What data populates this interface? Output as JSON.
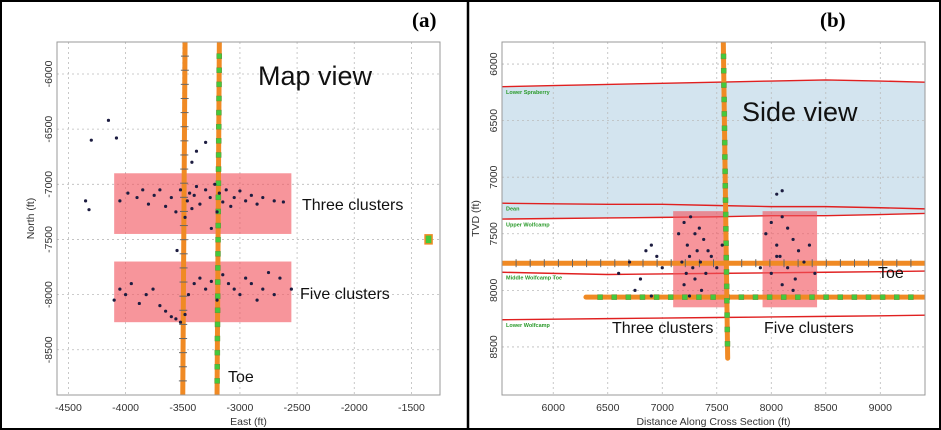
{
  "chart_data": [
    {
      "type": "scatter",
      "panel_label": "(a)",
      "xlabel": "East (ft)",
      "ylabel": "North (ft)",
      "annotations": [
        "Map view",
        "Three clusters",
        "Five clusters",
        "Toe"
      ],
      "xlim": [
        -4600,
        -1250
      ],
      "ylim": [
        -8910,
        -5710
      ],
      "xticks": [
        -4500,
        -4000,
        -3500,
        -3000,
        -2500,
        -2000,
        -1500
      ],
      "yticks": [
        -6000,
        -6500,
        -7000,
        -7500,
        -8000,
        -8500
      ],
      "grid": true,
      "y_inverted": false,
      "color": "#1c1c40",
      "x": [
        -4050,
        -3980,
        -3900,
        -3850,
        -3800,
        -3750,
        -3700,
        -3650,
        -3600,
        -3560,
        -3520,
        -3480,
        -3460,
        -3440,
        -3420,
        -3400,
        -3380,
        -3350,
        -3300,
        -3260,
        -3220,
        -3200,
        -3180,
        -3150,
        -3120,
        -3080,
        -3050,
        -3000,
        -2950,
        -2900,
        -2850,
        -2800,
        -2700,
        -2620,
        -3550,
        -3250,
        -4300,
        -4150,
        -4080,
        -3380,
        -3300,
        -3420,
        -4350,
        -4320,
        -4100,
        -4050,
        -4000,
        -3950,
        -3880,
        -3820,
        -3760,
        -3700,
        -3650,
        -3600,
        -3560,
        -3520,
        -3480,
        -3450,
        -3400,
        -3350,
        -3300,
        -3250,
        -3200,
        -3150,
        -3100,
        -3050,
        -3000,
        -2950,
        -2900,
        -2850,
        -2800,
        -2750,
        -2700,
        -2650,
        -2550
      ],
      "values": [
        -7150,
        -7080,
        -7120,
        -7050,
        -7180,
        -7100,
        -7050,
        -7200,
        -7120,
        -7250,
        -7050,
        -7300,
        -7150,
        -7080,
        -7220,
        -7100,
        -7020,
        -7180,
        -7050,
        -7120,
        -7000,
        -7250,
        -7080,
        -7160,
        -7050,
        -7200,
        -7120,
        -7060,
        -7150,
        -7100,
        -7180,
        -7120,
        -7150,
        -7160,
        -7600,
        -7400,
        -6600,
        -6420,
        -6580,
        -6700,
        -6620,
        -6800,
        -7150,
        -7230,
        -8050,
        -7950,
        -8000,
        -7900,
        -8080,
        -8000,
        -7950,
        -8100,
        -8150,
        -8200,
        -8220,
        -8250,
        -8180,
        -8000,
        -7900,
        -7850,
        -7950,
        -7880,
        -8050,
        -7820,
        -7900,
        -7950,
        -8000,
        -7850,
        -7900,
        -8050,
        -7950,
        -7800,
        -8000,
        -7850,
        -7950
      ],
      "cluster_zones": [
        {
          "x": [
            -4100,
            -2550
          ],
          "y": [
            -6900,
            -7450
          ],
          "color": "#f2545e"
        },
        {
          "x": [
            -4100,
            -2550
          ],
          "y": [
            -7700,
            -8250
          ],
          "color": "#f2545e"
        }
      ],
      "wells": [
        {
          "x": [
            -3480,
            -3500
          ],
          "y": [
            -5710,
            -8910
          ],
          "color": "#f08a24"
        },
        {
          "x": [
            -3180,
            -3200
          ],
          "y": [
            -5710,
            -8910
          ],
          "color": "#f08a24",
          "marker_color": "#44c93c"
        }
      ],
      "surface_marker": {
        "x": -1350,
        "y": -7490,
        "color": "#44c93c"
      }
    },
    {
      "type": "scatter",
      "panel_label": "(b)",
      "xlabel": "Distance Along Cross Section (ft)",
      "ylabel": "TVD (ft)",
      "annotations": [
        "Side view",
        "Three clusters",
        "Five clusters",
        "Toe"
      ],
      "xlim": [
        5530,
        9410
      ],
      "ylim": [
        5805,
        8925
      ],
      "xticks": [
        6000,
        6500,
        7000,
        7500,
        8000,
        8500,
        9000
      ],
      "yticks": [
        6000,
        6500,
        7000,
        7500,
        8000,
        8500
      ],
      "grid": true,
      "y_inverted": true,
      "color": "#1c1c40",
      "x": [
        7150,
        7200,
        7230,
        7250,
        7260,
        7280,
        7300,
        7300,
        7320,
        7340,
        7350,
        7360,
        7380,
        7400,
        7420,
        7250,
        7200,
        7450,
        7500,
        7550,
        7180,
        7220,
        6600,
        6700,
        6800,
        6850,
        6900,
        6950,
        7000,
        6750,
        6900,
        7950,
        8000,
        8050,
        8080,
        8100,
        8150,
        8200,
        8220,
        8250,
        8300,
        8000,
        8100,
        8350,
        8050,
        8150,
        8050,
        8100,
        8200,
        7900,
        8400
      ],
      "values": [
        7500,
        7400,
        7600,
        7700,
        7350,
        7800,
        7500,
        7900,
        7650,
        7450,
        7750,
        8000,
        7550,
        7850,
        7650,
        8050,
        7950,
        7700,
        7800,
        7600,
        7750,
        7850,
        7850,
        7750,
        7900,
        7650,
        7600,
        7700,
        7800,
        8000,
        8050,
        7500,
        7400,
        7600,
        7700,
        7350,
        7800,
        7550,
        7900,
        7650,
        7750,
        7850,
        7950,
        7600,
        7700,
        7450,
        7150,
        7120,
        8000,
        7800,
        7850
      ],
      "horizons": [
        {
          "name": "Lower Spraberry",
          "x": [
            5530,
            6000,
            6500,
            7000,
            7500,
            8000,
            8500,
            9000,
            9410
          ],
          "depth": [
            6200,
            6190,
            6180,
            6170,
            6160,
            6150,
            6140,
            6150,
            6160
          ]
        },
        {
          "name": "Dean",
          "x": [
            5530,
            6000,
            6500,
            7000,
            7500,
            8000,
            8500,
            9000,
            9410
          ],
          "depth": [
            7230,
            7235,
            7240,
            7240,
            7250,
            7260,
            7260,
            7270,
            7280
          ]
        },
        {
          "name": "Upper Wolfcamp",
          "x": [
            5530,
            6000,
            6500,
            7000,
            7500,
            8000,
            8500,
            9000,
            9410
          ],
          "depth": [
            7370,
            7365,
            7360,
            7355,
            7350,
            7340,
            7340,
            7330,
            7320
          ]
        },
        {
          "name": "Middle Wolfcamp Toe",
          "x": [
            5530,
            6000,
            6500,
            7000,
            7500,
            8000,
            8500,
            9000,
            9410
          ],
          "depth": [
            7840,
            7850,
            7860,
            7855,
            7850,
            7845,
            7840,
            7835,
            7830
          ]
        },
        {
          "name": "Lower Wolfcamp",
          "x": [
            5530,
            6000,
            6500,
            7000,
            7500,
            8000,
            8500,
            9000,
            9410
          ],
          "depth": [
            8260,
            8255,
            8250,
            8245,
            8240,
            8235,
            8230,
            8225,
            8220
          ]
        }
      ],
      "horizon_color": "#e02020",
      "shade_color": "#d3e4ef",
      "cluster_zones": [
        {
          "x": [
            7100,
            7600
          ],
          "y": [
            7300,
            8150
          ],
          "color": "#f2545e"
        },
        {
          "x": [
            7920,
            8420
          ],
          "y": [
            7300,
            8150
          ],
          "color": "#f2545e"
        }
      ],
      "wells": [
        {
          "x": [
            5530,
            9410
          ],
          "y": [
            7760,
            7760
          ],
          "color": "#f08a24"
        },
        {
          "x": [
            6300,
            9410
          ],
          "y": [
            8060,
            8060
          ],
          "color": "#f08a24",
          "marker_color": "#44c93c"
        },
        {
          "x": [
            7560,
            7600
          ],
          "y": [
            5805,
            8600
          ],
          "color": "#f08a24",
          "marker_color": "#44c93c"
        }
      ]
    }
  ]
}
